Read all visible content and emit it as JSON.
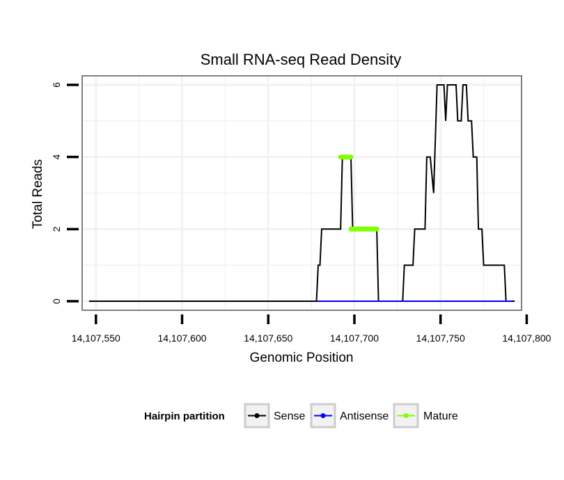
{
  "chart_data": {
    "type": "line",
    "title": "Small RNA-seq Read Density",
    "xlabel": "Genomic Position",
    "ylabel": "Total Reads",
    "xlim": [
      14107542,
      14107797
    ],
    "ylim": [
      -0.25,
      6.25
    ],
    "x_ticks": [
      14107550,
      14107600,
      14107650,
      14107700,
      14107750,
      14107800
    ],
    "x_tick_labels": [
      "14,107,550",
      "14,107,600",
      "14,107,650",
      "14,107,700",
      "14,107,750",
      "14,107,800"
    ],
    "y_ticks": [
      0,
      2,
      4,
      6
    ],
    "y_tick_labels": [
      "0",
      "2",
      "4",
      "6"
    ],
    "grid": true,
    "legend": {
      "title": "Hairpin partition",
      "position": "bottom",
      "entries": [
        "Sense",
        "Antisense",
        "Mature"
      ]
    },
    "series": [
      {
        "name": "Sense",
        "color": "#000000",
        "points": [
          [
            14107546,
            0
          ],
          [
            14107678,
            0
          ],
          [
            14107679,
            1
          ],
          [
            14107680,
            1
          ],
          [
            14107681,
            2
          ],
          [
            14107692,
            2
          ],
          [
            14107693,
            4
          ],
          [
            14107698,
            4
          ],
          [
            14107699,
            2
          ],
          [
            14107713,
            2
          ],
          [
            14107714,
            0
          ],
          [
            14107728,
            0
          ],
          [
            14107729,
            1
          ],
          [
            14107734,
            1
          ],
          [
            14107735,
            2
          ],
          [
            14107741,
            2
          ],
          [
            14107742,
            4
          ],
          [
            14107744,
            4
          ],
          [
            14107746,
            3
          ],
          [
            14107748,
            6
          ],
          [
            14107752,
            6
          ],
          [
            14107753,
            5
          ],
          [
            14107754,
            6
          ],
          [
            14107759,
            6
          ],
          [
            14107760,
            5
          ],
          [
            14107762,
            5
          ],
          [
            14107763,
            6
          ],
          [
            14107765,
            6
          ],
          [
            14107766,
            5
          ],
          [
            14107768,
            5
          ],
          [
            14107769,
            4
          ],
          [
            14107771,
            4
          ],
          [
            14107772,
            2
          ],
          [
            14107774,
            2
          ],
          [
            14107775,
            1
          ],
          [
            14107787,
            1
          ],
          [
            14107788,
            0
          ],
          [
            14107793,
            0
          ]
        ]
      },
      {
        "name": "Antisense",
        "color": "#0000ff",
        "points": [
          [
            14107678,
            0
          ],
          [
            14107791,
            0
          ]
        ]
      },
      {
        "name": "Mature",
        "color": "#7fff00",
        "segments": [
          [
            [
              14107692,
              4
            ],
            [
              14107698,
              4
            ]
          ],
          [
            [
              14107698,
              2
            ],
            [
              14107713,
              2
            ]
          ]
        ]
      }
    ]
  }
}
